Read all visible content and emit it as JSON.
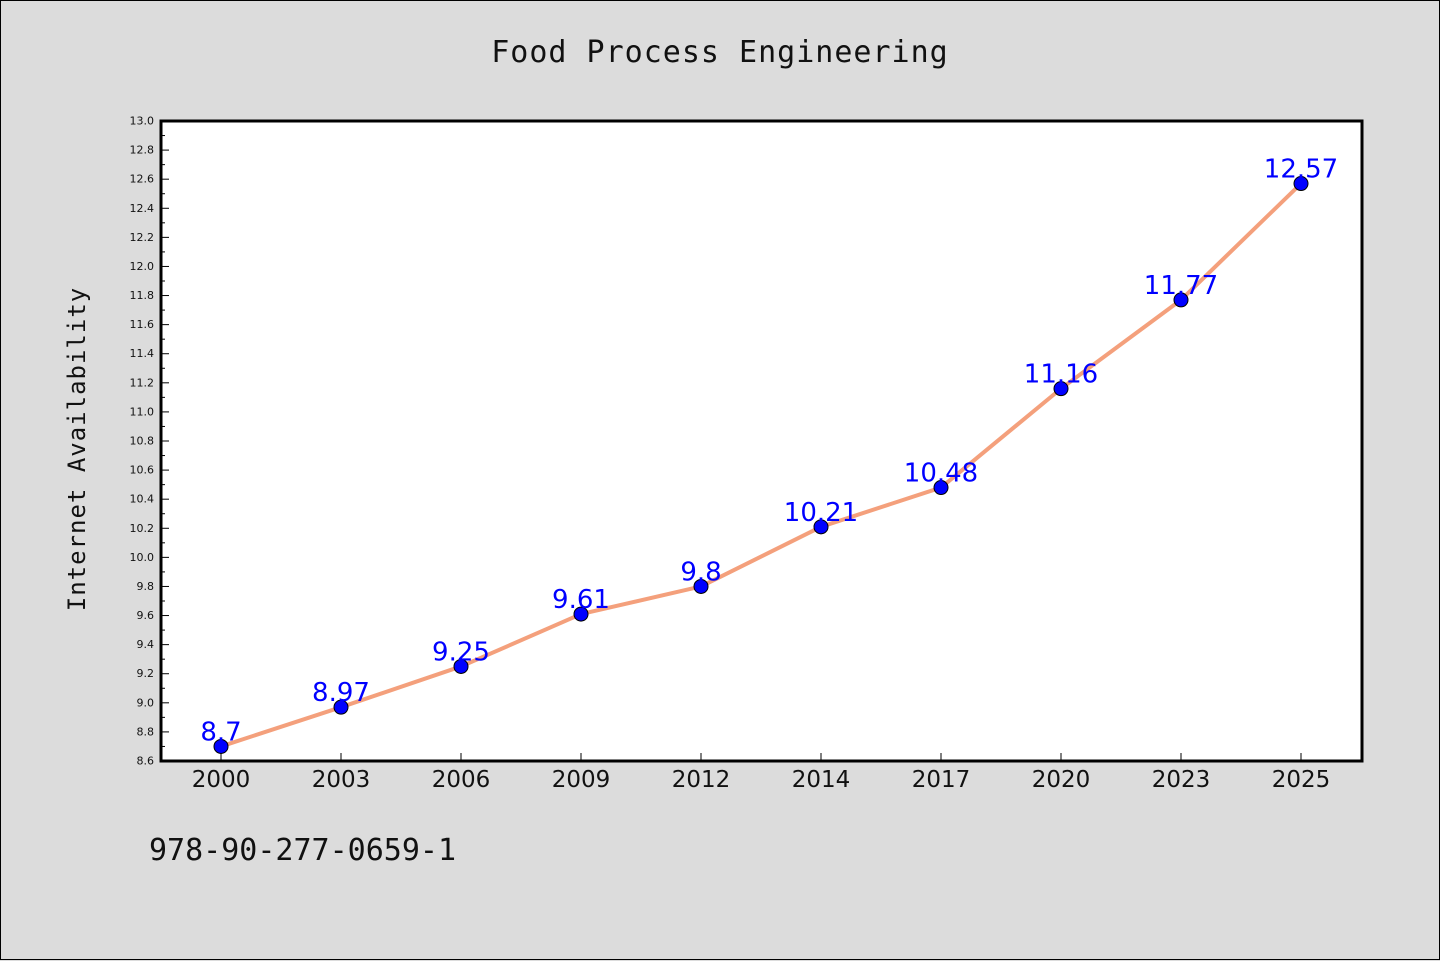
{
  "chart_data": {
    "type": "line",
    "title": "Food Process Engineering",
    "xlabel": "",
    "ylabel": "Internet Availability",
    "categories": [
      "2000",
      "2003",
      "2006",
      "2009",
      "2012",
      "2014",
      "2017",
      "2020",
      "2023",
      "2025"
    ],
    "series": [
      {
        "values": [
          8.7,
          8.97,
          9.25,
          9.61,
          9.8,
          10.21,
          10.48,
          11.16,
          11.77,
          12.57
        ],
        "data_labels": [
          "8.7",
          "8.97",
          "9.25",
          "9.61",
          "9.8",
          "10.21",
          "10.48",
          "11.16",
          "11.77",
          "12.57"
        ]
      }
    ],
    "ylim": [
      8.6,
      13.0
    ],
    "yticks": [
      "8.6",
      "8.8",
      "9.0",
      "9.2",
      "9.4",
      "9.6",
      "9.8",
      "10.0",
      "10.2",
      "10.4",
      "10.6",
      "10.8",
      "11.0",
      "11.2",
      "11.4",
      "11.6",
      "11.8",
      "12.0",
      "12.2",
      "12.4",
      "12.6",
      "12.8",
      "13.0"
    ],
    "grid": false,
    "legend": "none",
    "colors": {
      "line": "#f4a07c",
      "marker": "#0000ff",
      "label": "#0000ff",
      "background": "#dcdcdc",
      "plot_area": "#ffffff"
    }
  },
  "footer": {
    "code": "978-90-277-0659-1"
  }
}
